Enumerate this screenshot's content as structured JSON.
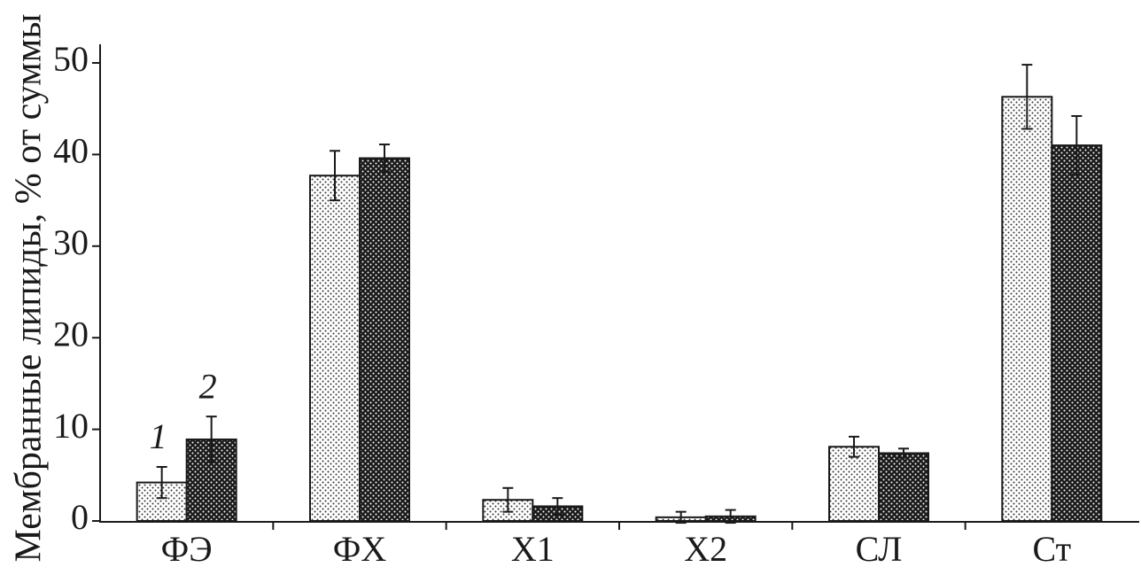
{
  "chart_data": {
    "type": "bar",
    "y_label": "Мембранные липиды, % от суммы",
    "categories": [
      "ФЭ",
      "ФХ",
      "Х1",
      "Х2",
      "СЛ",
      "Ст"
    ],
    "series": [
      {
        "name": "1",
        "color": "#ffffff",
        "values": [
          4.2,
          37.7,
          2.3,
          0.4,
          8.1,
          46.3
        ],
        "errors": [
          1.7,
          2.7,
          1.3,
          0.6,
          1.1,
          3.5
        ]
      },
      {
        "name": "2",
        "color": "#1a1a1a",
        "values": [
          8.9,
          39.6,
          1.6,
          0.5,
          7.4,
          41.0
        ],
        "errors": [
          2.5,
          1.5,
          0.9,
          0.7,
          0.5,
          3.2
        ]
      }
    ],
    "ylim": [
      0,
      50
    ],
    "yticks": [
      0,
      10,
      20,
      30,
      40,
      50
    ],
    "grid": false
  }
}
